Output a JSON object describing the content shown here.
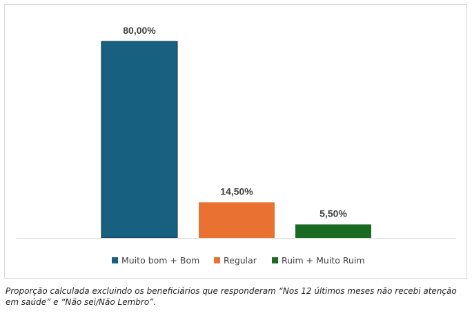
{
  "chart_data": {
    "type": "bar",
    "categories": [
      "Muito bom + Bom",
      "Regular",
      "Ruim + Muito Ruim"
    ],
    "values": [
      80.0,
      14.5,
      5.5
    ],
    "data_labels": [
      "80,00%",
      "14,50%",
      "5,50%"
    ],
    "colors": [
      "#17607f",
      "#e97132",
      "#196b24"
    ],
    "title": "",
    "xlabel": "",
    "ylabel": "",
    "ylim": [
      0,
      80
    ],
    "grid": false,
    "legend": {
      "position": "bottom",
      "entries": [
        "Muito bom + Bom",
        "Regular",
        "Ruim + Muito Ruim"
      ]
    }
  },
  "footnote": "Proporção calculada excluindo os beneficiários que responderam “Nos 12 últimos meses não recebi atenção em saúde” e “Não sei/Não Lembro”."
}
